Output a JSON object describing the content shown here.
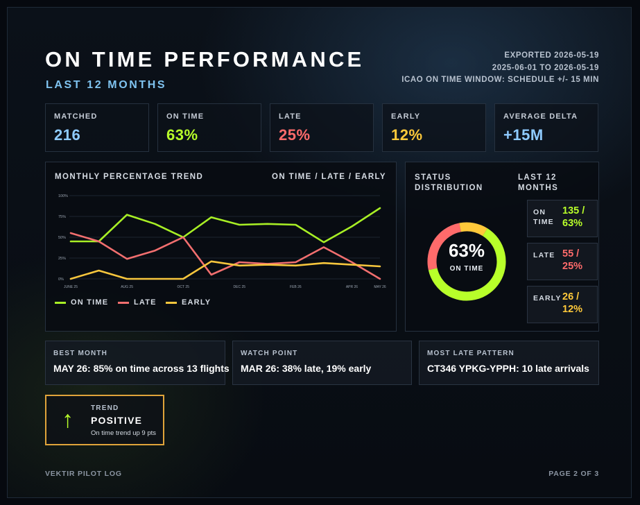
{
  "header": {
    "title": "ON TIME PERFORMANCE",
    "subtitle": "LAST 12 MONTHS",
    "exported": "EXPORTED 2026-05-19",
    "range": "2025-06-01 TO 2026-05-19",
    "window": "ICAO ON TIME WINDOW: SCHEDULE +/- 15 MIN"
  },
  "stats": [
    {
      "label": "MATCHED",
      "value": "216",
      "color": "#8fcbff"
    },
    {
      "label": "ON TIME",
      "value": "63%",
      "color": "#b8ff2a"
    },
    {
      "label": "LATE",
      "value": "25%",
      "color": "#ff6b6b"
    },
    {
      "label": "EARLY",
      "value": "12%",
      "color": "#ffc93a"
    },
    {
      "label": "AVERAGE DELTA",
      "value": "+15M",
      "color": "#8fcbff"
    }
  ],
  "trend_panel": {
    "title": "MONTHLY PERCENTAGE TREND",
    "right_label": "ON TIME / LATE / EARLY"
  },
  "chart_data": {
    "type": "line",
    "x": [
      "JUNE 25",
      "JUL 25",
      "AUG 25",
      "SEP 25",
      "OCT 25",
      "NOV 25",
      "DEC 25",
      "JAN 26",
      "FEB 26",
      "MAR 26",
      "APR 26",
      "MAY 26"
    ],
    "x_tick_labels": [
      "JUNE 25",
      "AUG 25",
      "OCT 25",
      "DEC 25",
      "FEB 26",
      "APR 26",
      "MAY 26"
    ],
    "y_tick_labels": [
      "100%",
      "75%",
      "50%",
      "25%",
      "0%"
    ],
    "ylim": [
      0,
      100
    ],
    "grid": true,
    "legend": "bottom-left",
    "series": [
      {
        "name": "ON TIME",
        "color": "#a8ef25",
        "values": [
          45,
          45,
          77,
          66,
          50,
          74,
          65,
          66,
          65,
          44,
          63,
          85
        ]
      },
      {
        "name": "LATE",
        "color": "#f26f6f",
        "values": [
          55,
          45,
          24,
          34,
          50,
          5,
          20,
          18,
          20,
          38,
          20,
          0
        ]
      },
      {
        "name": "EARLY",
        "color": "#f7c63d",
        "values": [
          0,
          10,
          0,
          0,
          0,
          21,
          16,
          17,
          16,
          19,
          17,
          15
        ]
      }
    ]
  },
  "distribution": {
    "title": "STATUS DISTRIBUTION",
    "period": "LAST 12 MONTHS",
    "center_value": "63%",
    "center_label": "ON TIME",
    "segments": [
      {
        "label": "ON TIME",
        "count": 135,
        "pct": 63,
        "text": "135 / 63%",
        "color": "#b8ff2a"
      },
      {
        "label": "LATE",
        "count": 55,
        "pct": 25,
        "text": "55 / 25%",
        "color": "#ff6b6b"
      },
      {
        "label": "EARLY",
        "count": 26,
        "pct": 12,
        "text": "26 / 12%",
        "color": "#ffc93a"
      }
    ]
  },
  "insights": [
    {
      "label": "BEST MONTH",
      "text": "MAY 26: 85% on time across 13 flights"
    },
    {
      "label": "WATCH POINT",
      "text": "MAR 26: 38% late, 19% early"
    },
    {
      "label": "MOST LATE PATTERN",
      "text": "CT346 YPKG-YPPH: 10 late arrivals"
    }
  ],
  "trend": {
    "label": "TREND",
    "value": "POSITIVE",
    "note": "On time trend up 9 pts",
    "arrow": "↑",
    "icon": "arrow-up-icon",
    "border_color": "#e0a43a",
    "arrow_color": "#b8ff2a"
  },
  "footer": {
    "left": "VEKTIR PILOT LOG",
    "right": "PAGE 2 OF 3"
  }
}
